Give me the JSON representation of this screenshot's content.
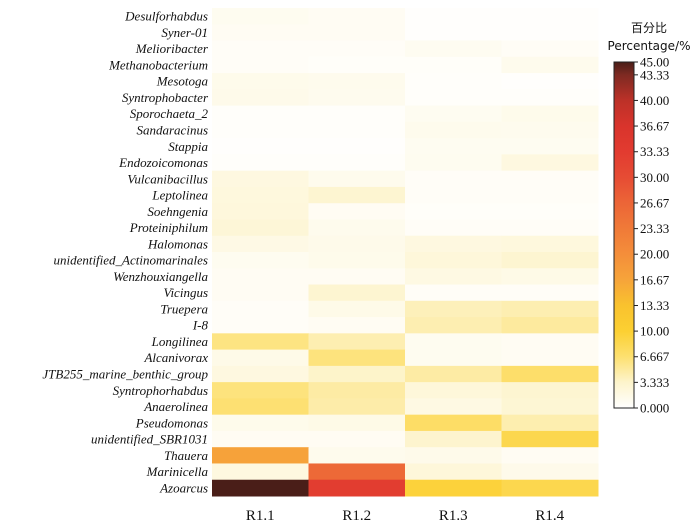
{
  "chart_data": {
    "type": "heatmap",
    "legend_title": [
      "百分比",
      "Percentage/%"
    ],
    "columns": [
      "R1.1",
      "R1.2",
      "R1.3",
      "R1.4"
    ],
    "rows": [
      "Desulforhabdus",
      "Syner-01",
      "Melioribacter",
      "Methanobacterium",
      "Mesotoga",
      "Syntrophobacter",
      "Sporochaeta_2",
      "Sandaracinus",
      "Stappia",
      "Endozoicomonas",
      "Vulcanibacillus",
      "Leptolinea",
      "Soehngenia",
      "Proteiniphilum",
      "Halomonas",
      "unidentified_Actinomarinales",
      "Wenzhouxiangella",
      "Vicingus",
      "Truepera",
      "I-8",
      "Longilinea",
      "Alcanivorax",
      "JTB255_marine_benthic_group",
      "Syntrophorhabdus",
      "Anaerolinea",
      "Pseudomonas",
      "unidentified_SBR1031",
      "Thauera",
      "Marinicella",
      "Azoarcus"
    ],
    "values": [
      [
        1.0,
        0.8,
        0.2,
        0.2
      ],
      [
        0.8,
        0.8,
        0.2,
        0.2
      ],
      [
        0.5,
        0.5,
        0.9,
        0.6
      ],
      [
        0.5,
        0.4,
        0.4,
        1.2
      ],
      [
        1.3,
        1.2,
        0.3,
        0.2
      ],
      [
        1.4,
        1.1,
        0.3,
        0.3
      ],
      [
        0.3,
        0.3,
        0.9,
        1.3
      ],
      [
        0.3,
        0.3,
        1.2,
        1.1
      ],
      [
        0.2,
        0.2,
        0.9,
        0.9
      ],
      [
        0.3,
        0.3,
        1.0,
        2.0
      ],
      [
        2.0,
        1.2,
        0.5,
        0.5
      ],
      [
        2.2,
        3.0,
        0.5,
        0.5
      ],
      [
        2.3,
        0.8,
        0.4,
        0.4
      ],
      [
        2.6,
        1.2,
        0.5,
        0.5
      ],
      [
        1.7,
        1.4,
        2.0,
        2.2
      ],
      [
        1.0,
        1.3,
        2.4,
        3.0
      ],
      [
        0.8,
        0.8,
        1.8,
        1.6
      ],
      [
        0.8,
        3.0,
        0.5,
        0.5
      ],
      [
        0.5,
        1.5,
        4.0,
        4.3
      ],
      [
        0.5,
        0.8,
        4.3,
        5.0
      ],
      [
        6.0,
        4.3,
        1.0,
        0.8
      ],
      [
        1.5,
        6.2,
        1.0,
        0.8
      ],
      [
        2.0,
        3.4,
        4.8,
        7.0
      ],
      [
        6.2,
        4.8,
        2.4,
        3.0
      ],
      [
        6.6,
        4.6,
        1.8,
        2.8
      ],
      [
        1.3,
        1.6,
        7.2,
        4.4
      ],
      [
        0.8,
        0.8,
        3.2,
        8.5
      ],
      [
        17.0,
        1.2,
        1.4,
        0.8
      ],
      [
        2.0,
        26.0,
        2.4,
        1.4
      ],
      [
        45.0,
        33.0,
        9.5,
        8.5
      ]
    ],
    "scale": {
      "min": 0.0,
      "max": 45.0,
      "ticks": [
        "45.00",
        "43.33",
        "40.00",
        "36.67",
        "33.33",
        "30.00",
        "26.67",
        "23.33",
        "20.00",
        "16.67",
        "13.33",
        "10.00",
        "6.667",
        "3.333",
        "0.000"
      ],
      "tick_values": [
        45.0,
        43.33,
        40.0,
        36.67,
        33.33,
        30.0,
        26.67,
        23.33,
        20.0,
        16.67,
        13.33,
        10.0,
        6.667,
        3.333,
        0.0
      ],
      "stops": [
        {
          "v": 0.0,
          "color": "#ffffff"
        },
        {
          "v": 3.333,
          "color": "#fdf4cc"
        },
        {
          "v": 6.667,
          "color": "#fde070"
        },
        {
          "v": 10.0,
          "color": "#fcd032"
        },
        {
          "v": 13.33,
          "color": "#f9c22e"
        },
        {
          "v": 16.67,
          "color": "#f6a43a"
        },
        {
          "v": 20.0,
          "color": "#f48e3a"
        },
        {
          "v": 23.33,
          "color": "#f07a38"
        },
        {
          "v": 26.67,
          "color": "#ec6537"
        },
        {
          "v": 30.0,
          "color": "#e64c34"
        },
        {
          "v": 33.33,
          "color": "#e23b30"
        },
        {
          "v": 36.67,
          "color": "#d9342c"
        },
        {
          "v": 40.0,
          "color": "#bc3128"
        },
        {
          "v": 43.33,
          "color": "#7e2a22"
        },
        {
          "v": 45.0,
          "color": "#4a1e18"
        }
      ]
    }
  }
}
